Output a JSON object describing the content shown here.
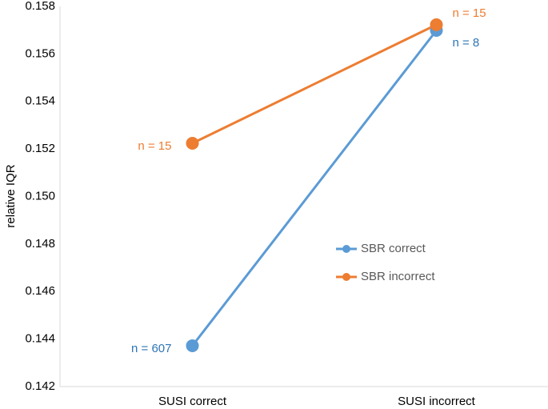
{
  "chart_data": {
    "type": "line",
    "y_label": "relative IQR",
    "categories": [
      "SUSI correct",
      "SUSI incorrect"
    ],
    "series": [
      {
        "name": "SBR correct",
        "color": "#5b9bd5",
        "label_color": "#2e75b6",
        "values": [
          0.14372,
          0.15699
        ],
        "annotations": [
          "n = 607",
          "n = 8"
        ]
      },
      {
        "name": "SBR incorrect",
        "color": "#ed7d31",
        "label_color": "#ed7d31",
        "values": [
          0.15224,
          0.15723
        ],
        "annotations": [
          "n = 15",
          "n = 15"
        ]
      }
    ],
    "ylim": [
      0.142,
      0.158
    ],
    "yticks": [
      0.142,
      0.144,
      0.146,
      0.148,
      {
        "value": 0.15,
        "label": "0.150"
      },
      0.152,
      0.154,
      0.156,
      0.158
    ],
    "grid": false
  }
}
